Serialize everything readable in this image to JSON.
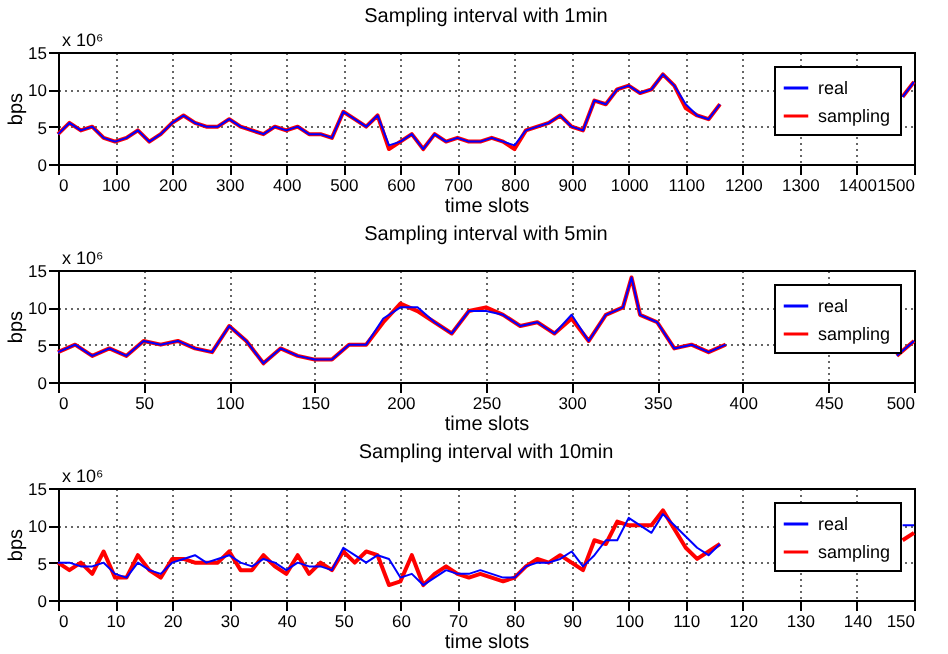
{
  "chart_data": [
    {
      "type": "line",
      "title": "Sampling interval with 1min",
      "xlabel": "time slots",
      "ylabel": "bps",
      "annotations": [
        "x 10⁶"
      ],
      "x": [
        0,
        20,
        40,
        60,
        80,
        100,
        120,
        140,
        160,
        180,
        200,
        220,
        240,
        260,
        280,
        300,
        320,
        340,
        360,
        380,
        400,
        420,
        440,
        460,
        480,
        500,
        520,
        540,
        560,
        580,
        600,
        620,
        640,
        660,
        680,
        700,
        720,
        740,
        760,
        780,
        800,
        820,
        840,
        860,
        880,
        900,
        920,
        940,
        960,
        980,
        1000,
        1020,
        1040,
        1060,
        1080,
        1100,
        1120,
        1140,
        1160,
        1180,
        1200,
        1220,
        1240,
        1260,
        1280,
        1300,
        1320,
        1340,
        1360,
        1380,
        1400,
        1420,
        1440,
        1460,
        1480,
        1500
      ],
      "series": [
        {
          "name": "real",
          "color": "#0000ff",
          "values": [
            4,
            5.5,
            4.5,
            5,
            3.5,
            3,
            3.5,
            4.5,
            3,
            4,
            5.5,
            6.5,
            5.5,
            5,
            5,
            6,
            5,
            4.5,
            4,
            5,
            4.5,
            5,
            4,
            4,
            3.5,
            7,
            6,
            5,
            6.5,
            2.5,
            3,
            4,
            2,
            4,
            3,
            3.5,
            3,
            3,
            3.5,
            3,
            2.5,
            4.5,
            5,
            5.5,
            6.5,
            5,
            4.5,
            8.5,
            8,
            10,
            10.5,
            9.5,
            10,
            12,
            10.5,
            8,
            6.5,
            6,
            8,
            null,
            null,
            null,
            null,
            null,
            null,
            null,
            null,
            null,
            null,
            null,
            null,
            null,
            null,
            null,
            9,
            11
          ]
        },
        {
          "name": "sampling",
          "color": "#ff0000",
          "values": [
            4,
            5.5,
            4.5,
            5,
            3.5,
            3,
            3.5,
            4.5,
            3,
            4,
            5.5,
            6.5,
            5.5,
            5,
            5,
            6,
            5,
            4.5,
            4,
            5,
            4.5,
            5,
            4,
            4,
            3.5,
            7,
            6,
            5,
            6.5,
            2,
            3,
            4,
            2,
            4,
            3,
            3.5,
            3,
            3,
            3.5,
            3,
            2,
            4.5,
            5,
            5.5,
            6.5,
            5,
            4.5,
            8.5,
            8,
            10,
            10.5,
            9.5,
            10,
            12,
            10.5,
            7.5,
            6.5,
            6,
            8,
            null,
            null,
            null,
            null,
            null,
            null,
            null,
            null,
            null,
            null,
            null,
            null,
            null,
            null,
            null,
            9,
            11
          ]
        }
      ],
      "xlim": [
        0,
        1500
      ],
      "xticks": [
        0,
        100,
        200,
        300,
        400,
        500,
        600,
        700,
        800,
        900,
        1000,
        1100,
        1200,
        1300,
        1400,
        1500
      ],
      "ylim": [
        0,
        15
      ],
      "yticks": [
        0,
        5,
        10,
        15
      ],
      "grid": true,
      "legend": "top right",
      "line_style": "solid"
    },
    {
      "type": "line",
      "title": "Sampling interval with 5min",
      "xlabel": "time slots",
      "ylabel": "bps",
      "annotations": [
        "x 10⁶"
      ],
      "x": [
        0,
        10,
        20,
        30,
        40,
        50,
        60,
        70,
        80,
        90,
        100,
        110,
        120,
        130,
        140,
        150,
        160,
        170,
        180,
        190,
        200,
        210,
        220,
        230,
        240,
        250,
        260,
        270,
        280,
        290,
        300,
        310,
        320,
        330,
        335,
        340,
        350,
        360,
        370,
        380,
        390,
        400,
        410,
        420,
        430,
        440,
        450,
        460,
        470,
        480,
        490,
        500
      ],
      "series": [
        {
          "name": "real",
          "color": "#0000ff",
          "values": [
            4,
            5,
            3.5,
            4.5,
            3.5,
            5.5,
            5,
            5.5,
            4.5,
            4,
            7.5,
            5.5,
            2.5,
            4.5,
            3.5,
            3,
            3,
            5,
            5,
            8.5,
            10,
            10,
            8,
            6.5,
            9.5,
            9.5,
            9,
            7.5,
            8,
            6.5,
            9,
            5.5,
            9,
            10,
            14,
            9,
            8,
            4.5,
            5,
            4,
            5,
            null,
            null,
            null,
            null,
            null,
            null,
            null,
            null,
            null,
            3.5,
            5.5
          ]
        },
        {
          "name": "sampling",
          "color": "#ff0000",
          "values": [
            4,
            5,
            3.5,
            4.5,
            3.5,
            5.5,
            5,
            5.5,
            4.5,
            4,
            7.5,
            5.5,
            2.5,
            4.5,
            3.5,
            3,
            3,
            5,
            5,
            8,
            10.5,
            9.5,
            8,
            6.5,
            9.5,
            10,
            9,
            7.5,
            8,
            6.5,
            8.5,
            5.5,
            9,
            10,
            14,
            9,
            8,
            4.5,
            5,
            4,
            5,
            null,
            null,
            null,
            null,
            null,
            null,
            null,
            null,
            null,
            3.5,
            5.5
          ]
        }
      ],
      "xlim": [
        0,
        500
      ],
      "xticks": [
        0,
        50,
        100,
        150,
        200,
        250,
        300,
        350,
        400,
        450,
        500
      ],
      "ylim": [
        0,
        15
      ],
      "yticks": [
        0,
        5,
        10,
        15
      ],
      "grid": true,
      "legend": "top right",
      "line_style": "solid"
    },
    {
      "type": "line",
      "title": "Sampling interval with 10min",
      "xlabel": "time slots",
      "ylabel": "bps",
      "annotations": [
        "x 10⁶"
      ],
      "x": [
        0,
        2,
        4,
        6,
        8,
        10,
        12,
        14,
        16,
        18,
        20,
        22,
        24,
        26,
        28,
        30,
        32,
        34,
        36,
        38,
        40,
        42,
        44,
        46,
        48,
        50,
        52,
        54,
        56,
        58,
        60,
        62,
        64,
        66,
        68,
        70,
        72,
        74,
        76,
        78,
        80,
        82,
        84,
        86,
        88,
        90,
        92,
        94,
        96,
        98,
        100,
        102,
        104,
        106,
        108,
        110,
        112,
        114,
        116,
        118,
        120,
        122,
        124,
        126,
        128,
        130,
        132,
        134,
        136,
        138,
        140,
        142,
        144,
        146,
        148,
        150
      ],
      "series": [
        {
          "name": "real",
          "color": "#0000ff",
          "values": [
            5,
            5,
            4.5,
            4.5,
            5,
            3.5,
            3,
            5,
            4,
            3.5,
            5,
            5.5,
            6,
            5,
            5.5,
            6,
            5,
            4.5,
            5.5,
            5,
            4,
            5,
            4.5,
            4.5,
            4,
            7,
            6,
            5,
            6,
            5.5,
            3,
            3.5,
            2,
            3,
            4,
            3.5,
            3.5,
            4,
            3.5,
            3,
            3,
            4.5,
            5,
            5,
            5.5,
            6.5,
            4.5,
            6,
            8,
            8,
            11,
            10,
            9,
            11.5,
            10,
            8.5,
            7,
            6,
            7.5,
            null,
            null,
            null,
            null,
            null,
            null,
            null,
            null,
            null,
            null,
            null,
            null,
            null,
            null,
            null,
            10,
            10
          ]
        },
        {
          "name": "sampling",
          "color": "#ff0000",
          "values": [
            5,
            4,
            5,
            3.5,
            6.5,
            3,
            3,
            6,
            4,
            3,
            5.5,
            5.5,
            5,
            5,
            5,
            6.5,
            4,
            4,
            6,
            4.5,
            3.5,
            6,
            3.5,
            5,
            4,
            6.5,
            5,
            6.5,
            6,
            2,
            2.5,
            6,
            2,
            3.5,
            4.5,
            3.5,
            3,
            3.5,
            3,
            2.5,
            3,
            4.5,
            5.5,
            5,
            6,
            5,
            4,
            8,
            7.5,
            10.5,
            10,
            10,
            10,
            12,
            9.5,
            7,
            5.5,
            6.5,
            7.5,
            null,
            null,
            null,
            null,
            null,
            null,
            null,
            null,
            null,
            null,
            null,
            null,
            null,
            null,
            null,
            8,
            9
          ]
        }
      ],
      "xlim": [
        0,
        150
      ],
      "xticks": [
        0,
        10,
        20,
        30,
        40,
        50,
        60,
        70,
        80,
        90,
        100,
        110,
        120,
        130,
        140,
        150
      ],
      "ylim": [
        0,
        15
      ],
      "yticks": [
        0,
        5,
        10,
        15
      ],
      "grid": true,
      "legend": "top right",
      "line_style": "solid"
    }
  ]
}
